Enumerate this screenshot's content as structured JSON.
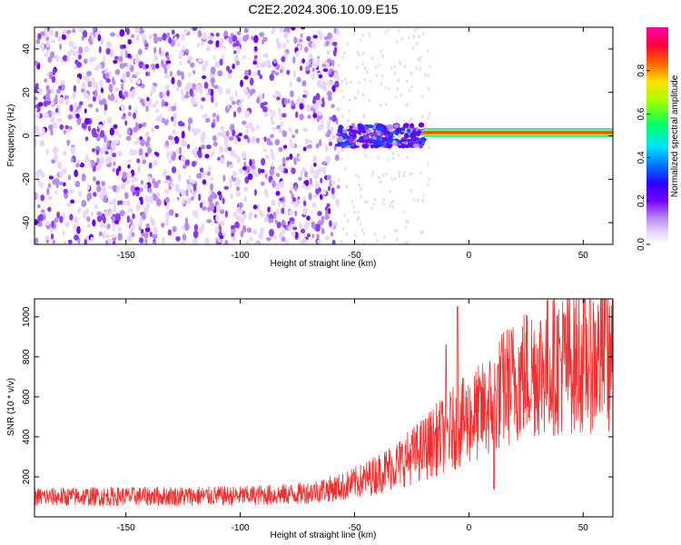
{
  "title": "C2E2.2024.306.10.09.E15",
  "chart_data": [
    {
      "type": "heatmap",
      "xlabel": "Height of straight line (km)",
      "ylabel": "Frequency (Hz)",
      "xlim": [
        -190,
        63
      ],
      "ylim": [
        -50,
        50
      ],
      "xticks": [
        -150,
        -100,
        -50,
        0,
        50
      ],
      "yticks": [
        -40,
        -20,
        0,
        20,
        40
      ],
      "colorbar": {
        "label": "Normalized spectral amplitude",
        "range": [
          0.0,
          1.0
        ],
        "ticks": [
          0.0,
          0.2,
          0.4,
          0.6,
          0.8
        ],
        "colors": [
          "#ffffff",
          "#e4d0fa",
          "#b98af0",
          "#8a3cf0",
          "#6b00ff",
          "#3a1cff",
          "#0050ff",
          "#00d8ff",
          "#00ff66",
          "#c8ff00",
          "#ffd000",
          "#ff4a00",
          "#ff0040",
          "#ff00a0"
        ]
      },
      "features": [
        {
          "region": "broadband noise",
          "x_range": [
            -190,
            -57
          ],
          "y_range": [
            -50,
            50
          ],
          "amplitude_range": [
            0.0,
            0.12
          ]
        },
        {
          "region": "transition",
          "x_range": [
            -57,
            -20
          ],
          "y_range": [
            -5,
            5
          ],
          "amplitude_range": [
            0.1,
            0.5
          ]
        },
        {
          "region": "narrow line",
          "x_range": [
            -20,
            63
          ],
          "frequency": 1.5,
          "amplitude": 0.85
        }
      ]
    },
    {
      "type": "line",
      "xlabel": "Height of straight line (km)",
      "ylabel": "SNR (10 * v/v)",
      "xlim": [
        -190,
        63
      ],
      "ylim": [
        0,
        1090
      ],
      "xticks": [
        -150,
        -100,
        -50,
        0,
        50
      ],
      "yticks": [
        200,
        400,
        600,
        800,
        1000
      ],
      "color": "#f03030",
      "trend": [
        {
          "x": -190,
          "y": 100
        },
        {
          "x": -100,
          "y": 105
        },
        {
          "x": -75,
          "y": 115
        },
        {
          "x": -55,
          "y": 150
        },
        {
          "x": -45,
          "y": 190
        },
        {
          "x": -30,
          "y": 270
        },
        {
          "x": -20,
          "y": 340
        },
        {
          "x": -10,
          "y": 420
        },
        {
          "x": 0,
          "y": 490
        },
        {
          "x": 8,
          "y": 540
        },
        {
          "x": 15,
          "y": 640
        },
        {
          "x": 25,
          "y": 720
        },
        {
          "x": 35,
          "y": 760
        },
        {
          "x": 50,
          "y": 790
        },
        {
          "x": 63,
          "y": 800
        }
      ],
      "spikes": [
        {
          "x": -5,
          "y": 1050
        },
        {
          "x": -10,
          "y": 860
        },
        {
          "x": 11,
          "y": 140
        },
        {
          "x": 60,
          "y": 1090
        }
      ]
    }
  ]
}
